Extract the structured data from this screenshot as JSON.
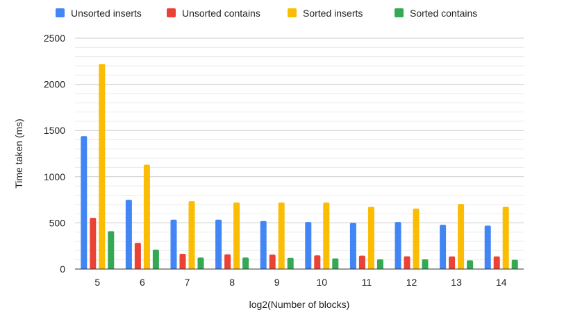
{
  "chart_data": {
    "type": "bar",
    "title": "",
    "xlabel": "log2(Number of blocks)",
    "ylabel": "Time taken (ms)",
    "ylim": [
      0,
      2500
    ],
    "yticks": [
      0,
      500,
      1000,
      1500,
      2000,
      2500
    ],
    "grid": true,
    "legend_position": "top",
    "categories": [
      "5",
      "6",
      "7",
      "8",
      "9",
      "10",
      "11",
      "12",
      "13",
      "14"
    ],
    "series": [
      {
        "name": "Unsorted inserts",
        "color": "#4285F4",
        "values": [
          1440,
          750,
          535,
          535,
          520,
          510,
          500,
          510,
          480,
          470
        ]
      },
      {
        "name": "Unsorted contains",
        "color": "#EA4335",
        "values": [
          555,
          283,
          165,
          160,
          157,
          148,
          145,
          138,
          137,
          137
        ]
      },
      {
        "name": "Sorted inserts",
        "color": "#FBBC04",
        "values": [
          2220,
          1130,
          735,
          720,
          720,
          720,
          675,
          655,
          705,
          675
        ]
      },
      {
        "name": "Sorted contains",
        "color": "#34A853",
        "values": [
          410,
          210,
          125,
          125,
          122,
          115,
          105,
          105,
          95,
          100
        ]
      }
    ]
  }
}
